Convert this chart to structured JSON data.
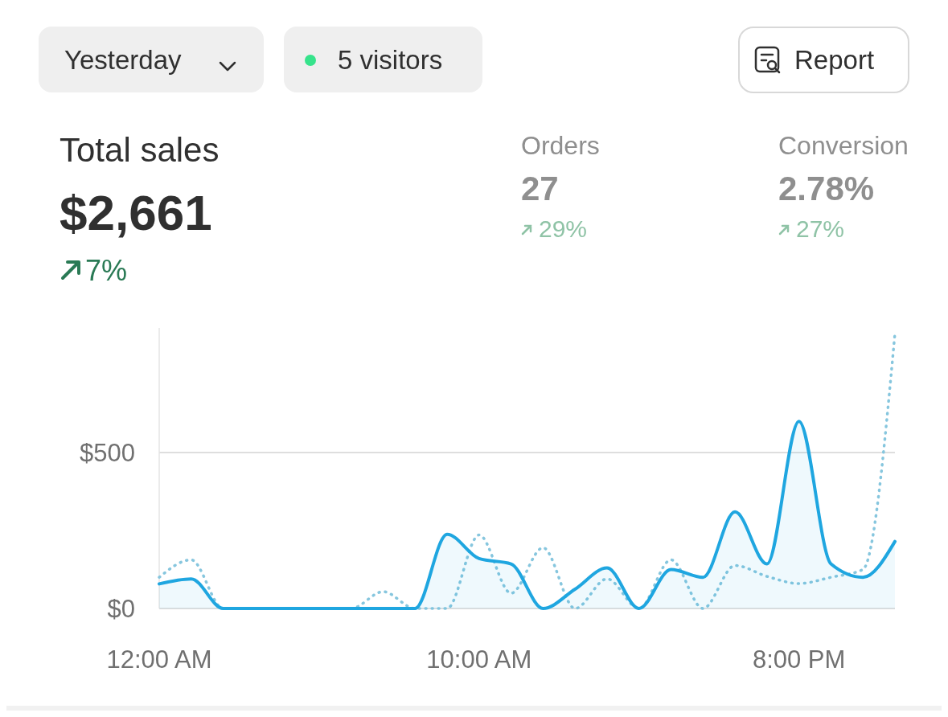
{
  "chart_data": {
    "type": "area",
    "title": "Total sales",
    "annotations": [
      "Yesterday",
      "5 visitors",
      "Report",
      "$2,661",
      "7%",
      "Orders",
      "27",
      "29%",
      "Conversion",
      "2.78%",
      "27%"
    ],
    "x": [
      0,
      1,
      2,
      3,
      4,
      5,
      6,
      7,
      8,
      9,
      10,
      11,
      12,
      13,
      14,
      15,
      16,
      17,
      18,
      19,
      20,
      21,
      22,
      23
    ],
    "xlim": [
      0,
      23
    ],
    "xticks": [
      {
        "value": 0,
        "label": "12:00 AM"
      },
      {
        "value": 10,
        "label": "10:00 AM"
      },
      {
        "value": 20,
        "label": "8:00 PM"
      }
    ],
    "ylim": [
      0,
      900
    ],
    "yticks": [
      {
        "value": 0,
        "label": "$0"
      },
      {
        "value": 500,
        "label": "$500"
      }
    ],
    "grid": "y",
    "series": [
      {
        "color": "#1fa6e0",
        "values": [
          79,
          95,
          0,
          0,
          0,
          0,
          0,
          0,
          0,
          238,
          160,
          143,
          0,
          62,
          130,
          0,
          125,
          100,
          310,
          143,
          600,
          143,
          100,
          215
        ]
      },
      {
        "type": "line",
        "line_style": "dotted",
        "color": "#86c6de",
        "values": [
          100,
          156,
          0,
          0,
          0,
          0,
          0,
          54,
          0,
          0,
          236,
          49,
          195,
          0,
          95,
          0,
          156,
          0,
          138,
          103,
          80,
          100,
          125,
          882
        ]
      }
    ]
  }
}
